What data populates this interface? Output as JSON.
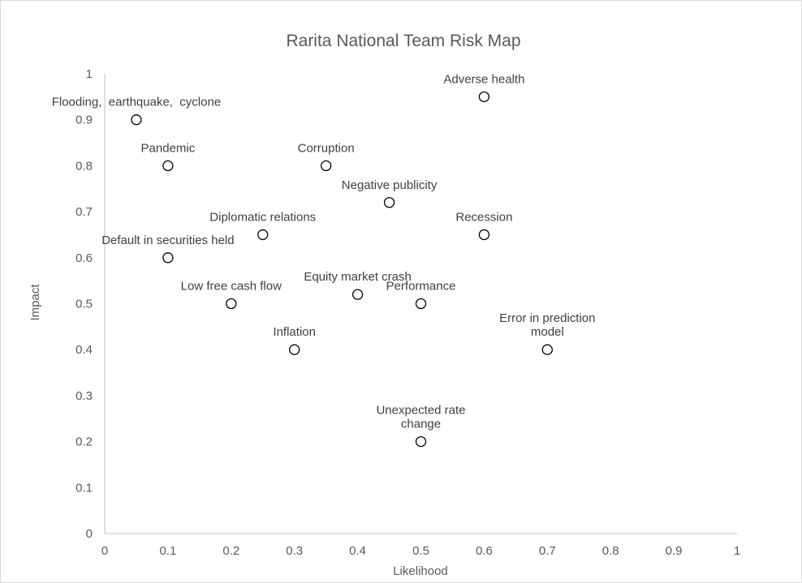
{
  "chart_data": {
    "type": "scatter",
    "title": "Rarita National Team Risk Map",
    "xlabel": "Likelihood",
    "ylabel": "Impact",
    "xlim": [
      0,
      1
    ],
    "ylim": [
      0,
      1
    ],
    "xticks": [
      "0",
      "0.1",
      "0.2",
      "0.3",
      "0.4",
      "0.5",
      "0.6",
      "0.7",
      "0.8",
      "0.9",
      "1"
    ],
    "yticks": [
      "0",
      "0.1",
      "0.2",
      "0.3",
      "0.4",
      "0.5",
      "0.6",
      "0.7",
      "0.8",
      "0.9",
      "1"
    ],
    "grid": false,
    "points": [
      {
        "label": "Flooding,  earthquake,  cyclone",
        "x": 0.05,
        "y": 0.9
      },
      {
        "label": "Adverse health",
        "x": 0.6,
        "y": 0.95
      },
      {
        "label": "Pandemic",
        "x": 0.1,
        "y": 0.8
      },
      {
        "label": "Corruption",
        "x": 0.35,
        "y": 0.8
      },
      {
        "label": "Negative publicity",
        "x": 0.45,
        "y": 0.72
      },
      {
        "label": "Diplomatic relations",
        "x": 0.25,
        "y": 0.65
      },
      {
        "label": "Recession",
        "x": 0.6,
        "y": 0.65
      },
      {
        "label": "Default in securities held",
        "x": 0.1,
        "y": 0.6
      },
      {
        "label": "Equity market crash",
        "x": 0.4,
        "y": 0.52
      },
      {
        "label": "Low free cash flow",
        "x": 0.2,
        "y": 0.5
      },
      {
        "label": "Performance",
        "x": 0.5,
        "y": 0.5
      },
      {
        "label": "Inflation",
        "x": 0.3,
        "y": 0.4
      },
      {
        "label": [
          "Error in prediction",
          "model"
        ],
        "x": 0.7,
        "y": 0.4
      },
      {
        "label": [
          "Unexpected rate",
          "change"
        ],
        "x": 0.5,
        "y": 0.2
      }
    ]
  }
}
